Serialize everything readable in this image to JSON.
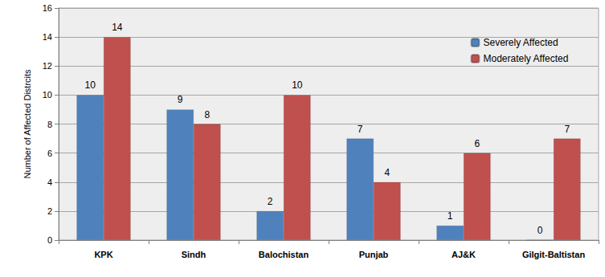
{
  "chart_data": {
    "type": "bar",
    "y_label": "Number of Affected Distrcits",
    "categories": [
      "KPK",
      "Sindh",
      "Balochistan",
      "Punjab",
      "AJ&K",
      "Gilgit-Baltistan"
    ],
    "series": [
      {
        "name": "Severely Affected",
        "color": "#4f81bd",
        "values": [
          10,
          9,
          2,
          7,
          1,
          0
        ]
      },
      {
        "name": "Moderately Affected",
        "color": "#c0504d",
        "values": [
          14,
          8,
          10,
          4,
          6,
          7
        ]
      }
    ],
    "ylim": [
      0,
      16
    ],
    "yticks": [
      0,
      2,
      4,
      6,
      8,
      10,
      12,
      14,
      16
    ],
    "grid": true,
    "legend": "upper right",
    "data_labels": true
  }
}
